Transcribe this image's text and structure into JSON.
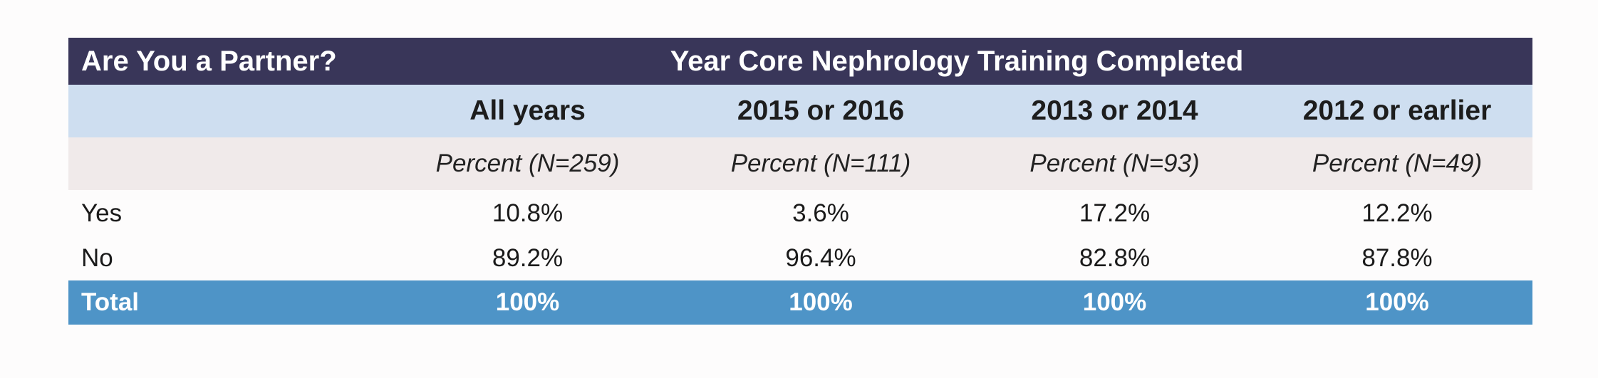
{
  "table": {
    "header": {
      "row_label": "Are You a Partner?",
      "group_title": "Year Core Nephrology Training Completed"
    },
    "columns": [
      {
        "year": "All years",
        "n_label": "Percent (N=259)"
      },
      {
        "year": "2015 or 2016",
        "n_label": "Percent (N=111)"
      },
      {
        "year": "2013 or 2014",
        "n_label": "Percent (N=93)"
      },
      {
        "year": "2012 or earlier",
        "n_label": "Percent (N=49)"
      }
    ],
    "rows": [
      {
        "label": "Yes",
        "values": [
          "10.8%",
          "3.6%",
          "17.2%",
          "12.2%"
        ]
      },
      {
        "label": "No",
        "values": [
          "89.2%",
          "96.4%",
          "82.8%",
          "87.8%"
        ]
      }
    ],
    "total": {
      "label": "Total",
      "values": [
        "100%",
        "100%",
        "100%",
        "100%"
      ]
    }
  },
  "colors": {
    "header_bg": "#393659",
    "years_bg": "#cedef0",
    "n_bg": "#f0eaea",
    "total_bg": "#4e94c7"
  }
}
